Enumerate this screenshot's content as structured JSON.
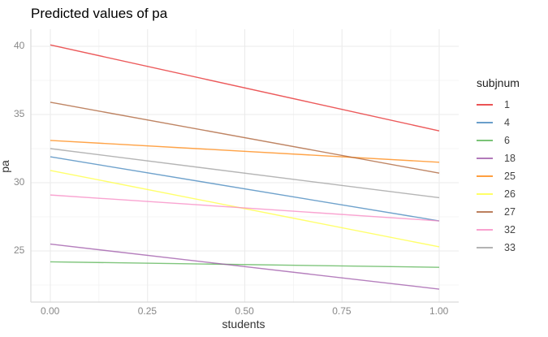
{
  "chart_data": {
    "type": "line",
    "title": "Predicted values of pa",
    "xlabel": "students",
    "ylabel": "pa",
    "x": [
      0.0,
      1.0
    ],
    "xlim": [
      -0.05,
      1.05
    ],
    "ylim": [
      21.0,
      41.0
    ],
    "x_ticks": [
      "0.00",
      "0.25",
      "0.50",
      "0.75",
      "1.00"
    ],
    "y_ticks": [
      "25",
      "30",
      "35",
      "40"
    ],
    "grid": true,
    "legend_title": "subjnum",
    "legend_position": "right",
    "series": [
      {
        "name": "1",
        "color": "#E41A1C",
        "values": [
          40.1,
          33.8
        ]
      },
      {
        "name": "4",
        "color": "#377EB8",
        "values": [
          31.9,
          27.2
        ]
      },
      {
        "name": "6",
        "color": "#4DAF4A",
        "values": [
          24.2,
          23.8
        ]
      },
      {
        "name": "18",
        "color": "#984EA3",
        "values": [
          25.5,
          22.2
        ]
      },
      {
        "name": "25",
        "color": "#FF7F00",
        "values": [
          33.1,
          31.5
        ]
      },
      {
        "name": "26",
        "color": "#FFFF33",
        "values": [
          30.9,
          25.3
        ]
      },
      {
        "name": "27",
        "color": "#A65628",
        "values": [
          35.9,
          30.7
        ]
      },
      {
        "name": "32",
        "color": "#F781BF",
        "values": [
          29.1,
          27.2
        ]
      },
      {
        "name": "33",
        "color": "#999999",
        "values": [
          32.5,
          28.9
        ]
      }
    ]
  }
}
